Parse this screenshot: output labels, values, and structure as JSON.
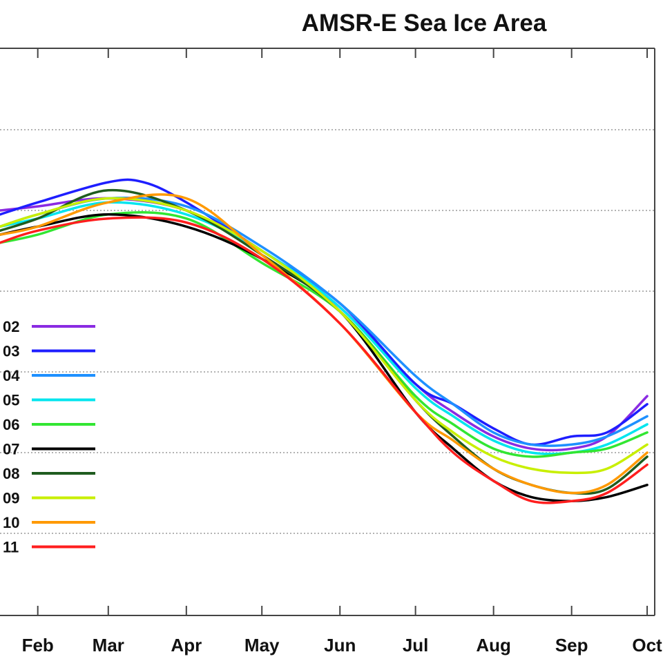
{
  "chart_data": {
    "type": "line",
    "title": "AMSR-E Sea Ice Area",
    "xlabel": "",
    "ylabel": "",
    "x_tick_labels": [
      "Feb",
      "Mar",
      "Apr",
      "May",
      "Jun",
      "Jul",
      "Aug",
      "Sep",
      "Oct"
    ],
    "x_tick_days": [
      32,
      60,
      91,
      121,
      152,
      182,
      213,
      244,
      274
    ],
    "xlim_days": [
      17,
      277
    ],
    "y_gridline_count": 6,
    "ylim_fraction": [
      0,
      1
    ],
    "grid": "horizontal dotted",
    "legend_placement": "left",
    "series": [
      {
        "name": "02",
        "color": "#8a2be2",
        "x": [
          17,
          32,
          60,
          91,
          121,
          152,
          182,
          197,
          213,
          228,
          244,
          258,
          274
        ],
        "y": [
          0.8,
          0.81,
          0.83,
          0.8,
          0.7,
          0.56,
          0.37,
          0.3,
          0.24,
          0.21,
          0.21,
          0.24,
          0.34
        ]
      },
      {
        "name": "03",
        "color": "#1e1eff",
        "x": [
          17,
          32,
          60,
          74,
          91,
          121,
          152,
          182,
          197,
          213,
          228,
          244,
          258,
          274
        ],
        "y": [
          0.79,
          0.82,
          0.87,
          0.87,
          0.82,
          0.7,
          0.57,
          0.37,
          0.32,
          0.26,
          0.22,
          0.24,
          0.25,
          0.32
        ]
      },
      {
        "name": "04",
        "color": "#1e90ff",
        "x": [
          17,
          32,
          60,
          91,
          121,
          152,
          182,
          197,
          213,
          228,
          244,
          258,
          274
        ],
        "y": [
          0.76,
          0.79,
          0.83,
          0.81,
          0.71,
          0.57,
          0.39,
          0.32,
          0.25,
          0.22,
          0.22,
          0.24,
          0.29
        ]
      },
      {
        "name": "05",
        "color": "#00e5ee",
        "x": [
          17,
          32,
          60,
          91,
          121,
          152,
          182,
          197,
          213,
          228,
          244,
          258,
          274
        ],
        "y": [
          0.76,
          0.78,
          0.82,
          0.79,
          0.7,
          0.56,
          0.36,
          0.29,
          0.23,
          0.2,
          0.2,
          0.22,
          0.27
        ]
      },
      {
        "name": "06",
        "color": "#32e632",
        "x": [
          17,
          32,
          60,
          91,
          121,
          152,
          182,
          197,
          213,
          228,
          244,
          258,
          274
        ],
        "y": [
          0.72,
          0.74,
          0.79,
          0.78,
          0.67,
          0.55,
          0.34,
          0.27,
          0.21,
          0.19,
          0.2,
          0.21,
          0.25
        ]
      },
      {
        "name": "07",
        "color": "#000000",
        "x": [
          17,
          32,
          60,
          91,
          121,
          152,
          182,
          197,
          213,
          228,
          244,
          258,
          274
        ],
        "y": [
          0.74,
          0.76,
          0.79,
          0.76,
          0.68,
          0.55,
          0.3,
          0.21,
          0.13,
          0.09,
          0.08,
          0.09,
          0.12
        ]
      },
      {
        "name": "08",
        "color": "#1f5c1f",
        "x": [
          17,
          32,
          60,
          91,
          121,
          152,
          182,
          197,
          213,
          228,
          244,
          258,
          274
        ],
        "y": [
          0.75,
          0.78,
          0.85,
          0.8,
          0.69,
          0.55,
          0.33,
          0.24,
          0.16,
          0.12,
          0.1,
          0.11,
          0.19
        ]
      },
      {
        "name": "09",
        "color": "#c8ef00",
        "x": [
          17,
          32,
          60,
          91,
          121,
          152,
          182,
          197,
          213,
          228,
          244,
          258,
          274
        ],
        "y": [
          0.76,
          0.79,
          0.83,
          0.8,
          0.7,
          0.55,
          0.33,
          0.25,
          0.19,
          0.16,
          0.15,
          0.16,
          0.22
        ]
      },
      {
        "name": "10",
        "color": "#ff9900",
        "x": [
          17,
          32,
          60,
          91,
          121,
          152,
          182,
          197,
          213,
          228,
          244,
          258,
          274
        ],
        "y": [
          0.74,
          0.76,
          0.82,
          0.83,
          0.69,
          0.52,
          0.3,
          0.23,
          0.16,
          0.12,
          0.1,
          0.12,
          0.2
        ]
      },
      {
        "name": "11",
        "color": "#ff1e1e",
        "x": [
          17,
          32,
          60,
          91,
          121,
          152,
          182,
          197,
          213,
          228,
          244,
          258,
          274
        ],
        "y": [
          0.72,
          0.75,
          0.78,
          0.77,
          0.68,
          0.52,
          0.3,
          0.2,
          0.13,
          0.08,
          0.08,
          0.1,
          0.17
        ]
      }
    ]
  }
}
